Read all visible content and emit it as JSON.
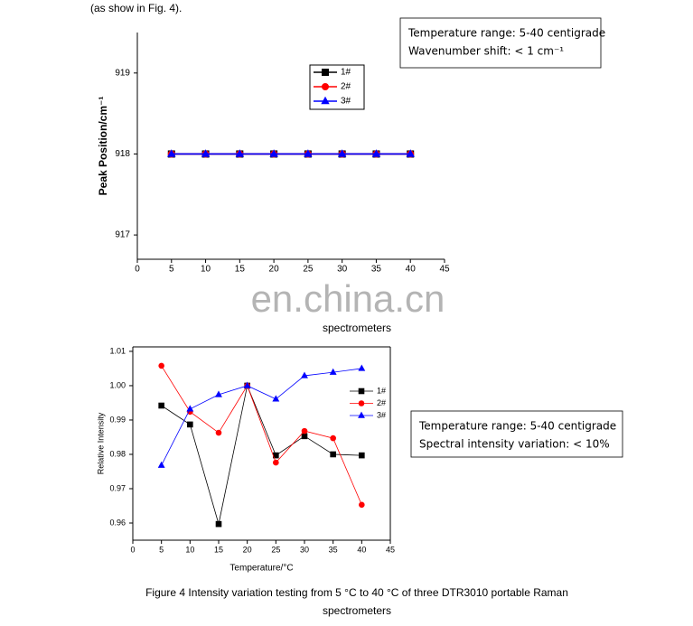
{
  "document": {
    "intro": "(as show in Fig. 4).",
    "watermark": "en.china.cn",
    "prev_caption_end": "spectrometers",
    "caption": [
      "Figure 4 Intensity variation testing from 5 °C to 40 °C of three DTR3010 portable Raman",
      "spectrometers"
    ]
  },
  "chart_data": [
    {
      "type": "line",
      "ylabel": "Peak Position/cm⁻¹",
      "annotations": [
        "Temperature range: 5-40 centigrade",
        "Wavenumber shift: < 1 cm⁻¹"
      ],
      "x": [
        5,
        10,
        15,
        20,
        25,
        30,
        35,
        40
      ],
      "series": [
        {
          "name": "1#",
          "color": "#000000",
          "marker": "square",
          "values": [
            918,
            918,
            918,
            918,
            918,
            918,
            918,
            918
          ]
        },
        {
          "name": "2#",
          "color": "#ff0000",
          "marker": "circle",
          "values": [
            918,
            918,
            918,
            918,
            918,
            918,
            918,
            918
          ]
        },
        {
          "name": "3#",
          "color": "#0000ff",
          "marker": "triangle",
          "values": [
            918,
            918,
            918,
            918,
            918,
            918,
            918,
            918
          ]
        }
      ],
      "xlim": [
        0,
        45
      ],
      "xticks": [
        0,
        5,
        10,
        15,
        20,
        25,
        30,
        35,
        40,
        45
      ],
      "ylim": [
        916.7,
        919.5
      ],
      "yticks": [
        917,
        918,
        919
      ],
      "frame": false,
      "legend_border": true
    },
    {
      "type": "line",
      "xlabel": "Temperature/°C",
      "ylabel": "Relative Intensity",
      "annotations": [
        "Temperature range: 5-40 centigrade",
        "Spectral intensity variation: < 10%"
      ],
      "x": [
        5,
        10,
        15,
        20,
        25,
        30,
        35,
        40
      ],
      "series": [
        {
          "name": "1#",
          "color": "#000000",
          "marker": "square",
          "values": [
            0.9942,
            0.9887,
            0.9597,
            1.0,
            0.9797,
            0.9853,
            0.98,
            0.9797
          ]
        },
        {
          "name": "2#",
          "color": "#ff0000",
          "marker": "circle",
          "values": [
            1.0058,
            0.9924,
            0.9863,
            1.0,
            0.9776,
            0.9868,
            0.9847,
            0.9653
          ]
        },
        {
          "name": "3#",
          "color": "#0000ff",
          "marker": "triangle",
          "values": [
            0.9768,
            0.9932,
            0.9974,
            1.0,
            0.9961,
            1.0029,
            1.0039,
            1.005
          ]
        }
      ],
      "xlim": [
        0,
        45
      ],
      "xticks": [
        0,
        5,
        10,
        15,
        20,
        25,
        30,
        35,
        40,
        45
      ],
      "ylim": [
        0.955,
        1.0113
      ],
      "yticks": [
        0.96,
        0.97,
        0.98,
        0.99,
        {
          "value": 1,
          "label": "1.00"
        },
        1.01
      ],
      "frame": true,
      "legend_border": false
    }
  ]
}
